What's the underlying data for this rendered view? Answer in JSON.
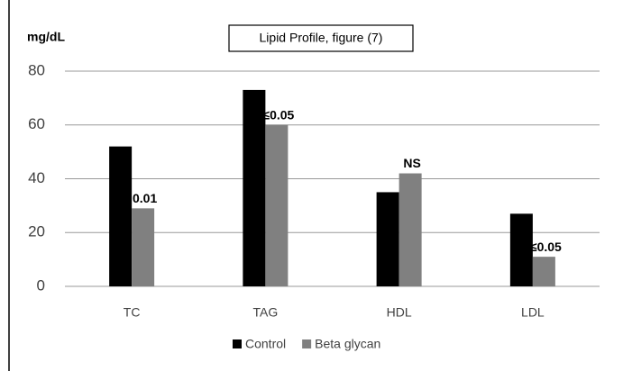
{
  "chart_data": {
    "type": "bar",
    "title": "Lipid Profile, figure (7)",
    "y_label": "mg/dL",
    "categories": [
      "TC",
      "TAG",
      "HDL",
      "LDL"
    ],
    "series": [
      {
        "name": "Control",
        "color": "#000000",
        "values": [
          52,
          73,
          35,
          27
        ]
      },
      {
        "name": "Beta glycan",
        "color": "#808080",
        "values": [
          29,
          60,
          42,
          11
        ]
      }
    ],
    "annotations": [
      "0.01",
      "≤0.05",
      "NS",
      "≤0.05"
    ],
    "ylim": [
      0,
      80
    ],
    "yticks": [
      0,
      20,
      40,
      60,
      80
    ],
    "grid": true,
    "legend": "bottom"
  }
}
